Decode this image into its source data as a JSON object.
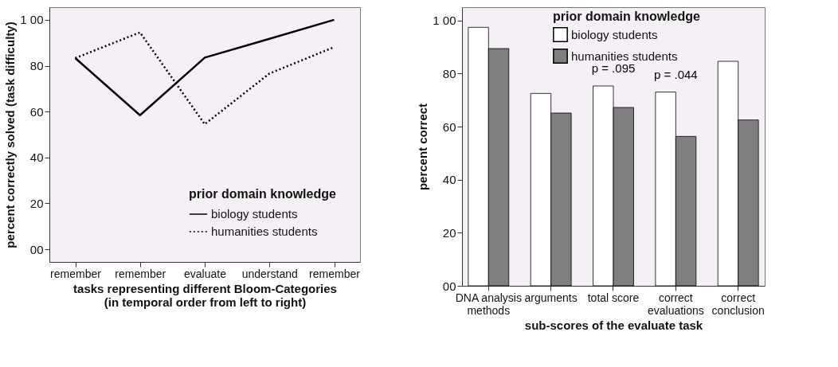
{
  "chart_data": [
    {
      "type": "line",
      "xlabel": "tasks representing different Bloom-Categories\n(in temporal order from left to right)",
      "ylabel": "percent correctly solved (task difficulty)",
      "legend_title": "prior domain knowledge",
      "categories": [
        "remember",
        "remember",
        "evaluate",
        "understand",
        "remember"
      ],
      "series": [
        {
          "name": "biology students",
          "color": "#000000",
          "line_style": "solid",
          "values": [
            83.3,
            58.4,
            83.5,
            91.7,
            100
          ]
        },
        {
          "name": "humanities students",
          "color": "#000000",
          "line_style": "dotted",
          "values": [
            83.3,
            94.5,
            54.5,
            76.6,
            88.1
          ]
        }
      ],
      "ylim": [
        -5.5,
        105.5
      ],
      "yticks": [
        {
          "value": 0,
          "label": "00"
        },
        20,
        40,
        60,
        80,
        {
          "value": 100,
          "label": "1 00"
        }
      ],
      "grid": false,
      "legend": "bottom right"
    },
    {
      "type": "bar",
      "xlabel": "sub-scores of the evaluate task",
      "ylabel": "percent correct",
      "legend_title": "prior domain knowledge",
      "categories": [
        "DNA analysis\nmethods",
        "arguments",
        "total score",
        "correct\nevaluations",
        "correct\nconclusion"
      ],
      "series": [
        {
          "name": "biology students",
          "color": "#ffffff",
          "values": [
            97.4,
            72.5,
            75.3,
            73.0,
            84.6
          ]
        },
        {
          "name": "humanities students",
          "color": "#7f7f7f",
          "values": [
            89.4,
            65.1,
            67.2,
            56.3,
            62.5
          ]
        }
      ],
      "annotations": [
        {
          "text": "p = .095",
          "x": "total score",
          "y": 75.3
        },
        {
          "text": "p = .044",
          "x": "correct\nevaluations",
          "y": 73.0
        }
      ],
      "ylim": [
        0,
        105
      ],
      "yticks": [
        {
          "value": 0,
          "label": "00"
        },
        20,
        40,
        60,
        80,
        {
          "value": 100,
          "label": "1 00"
        }
      ],
      "grid": false,
      "legend": "top"
    }
  ]
}
